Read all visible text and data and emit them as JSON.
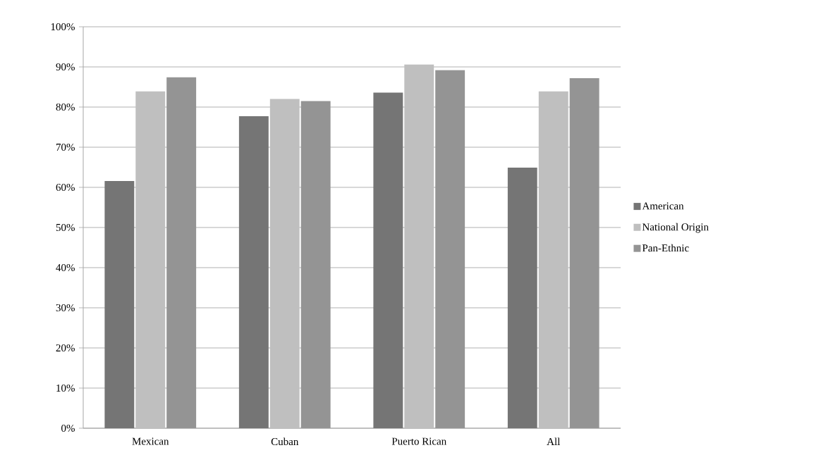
{
  "chart_data": {
    "type": "bar",
    "categories": [
      "Mexican",
      "Cuban",
      "Puerto Rican",
      "All"
    ],
    "series": [
      {
        "name": "American",
        "color": "#757575",
        "values": [
          61.6,
          77.7,
          83.6,
          64.9
        ]
      },
      {
        "name": "National Origin",
        "color": "#bfbfbf",
        "values": [
          83.9,
          82.0,
          90.6,
          83.9
        ]
      },
      {
        "name": "Pan-Ethnic",
        "color": "#949494",
        "values": [
          87.4,
          81.5,
          89.2,
          87.2
        ]
      }
    ],
    "ylim": [
      0,
      100
    ],
    "yticks": [
      {
        "value": 0,
        "label": "0%"
      },
      {
        "value": 10,
        "label": "10%"
      },
      {
        "value": 20,
        "label": "20%"
      },
      {
        "value": 30,
        "label": "30%"
      },
      {
        "value": 40,
        "label": "40%"
      },
      {
        "value": 50,
        "label": "50%"
      },
      {
        "value": 60,
        "label": "60%"
      },
      {
        "value": 70,
        "label": "70%"
      },
      {
        "value": 80,
        "label": "80%"
      },
      {
        "value": 90,
        "label": "90%"
      },
      {
        "value": 100,
        "label": "100%"
      }
    ],
    "grid": "y",
    "legend": "right"
  }
}
